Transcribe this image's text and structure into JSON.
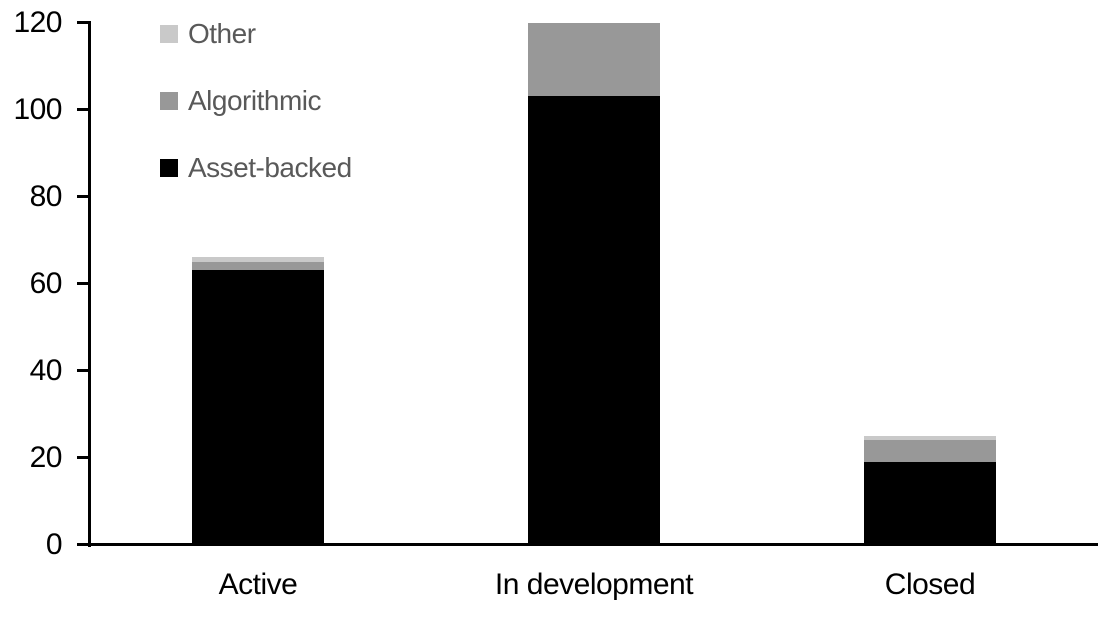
{
  "chart_data": {
    "type": "bar",
    "stacked": true,
    "title": "",
    "xlabel": "",
    "ylabel": "",
    "categories": [
      "Active",
      "In development",
      "Closed"
    ],
    "series": [
      {
        "name": "Asset-backed",
        "color": "#000000",
        "values": [
          63,
          103,
          19
        ]
      },
      {
        "name": "Algorithmic",
        "color": "#989898",
        "values": [
          2,
          17,
          5
        ]
      },
      {
        "name": "Other",
        "color": "#c9c9c9",
        "values": [
          1,
          0,
          1
        ]
      }
    ],
    "totals": [
      66,
      120,
      25
    ],
    "ylim": [
      0,
      120
    ],
    "yticks": [
      0,
      20,
      40,
      60,
      80,
      100,
      120
    ],
    "grid": false,
    "legend_position": "top-left",
    "legend_order": [
      "Other",
      "Algorithmic",
      "Asset-backed"
    ],
    "colors": {
      "axis": "#000000",
      "tick_label_text": "#000000",
      "category_label_text": "#000000",
      "legend_text": "#595959",
      "background": "#ffffff"
    }
  }
}
